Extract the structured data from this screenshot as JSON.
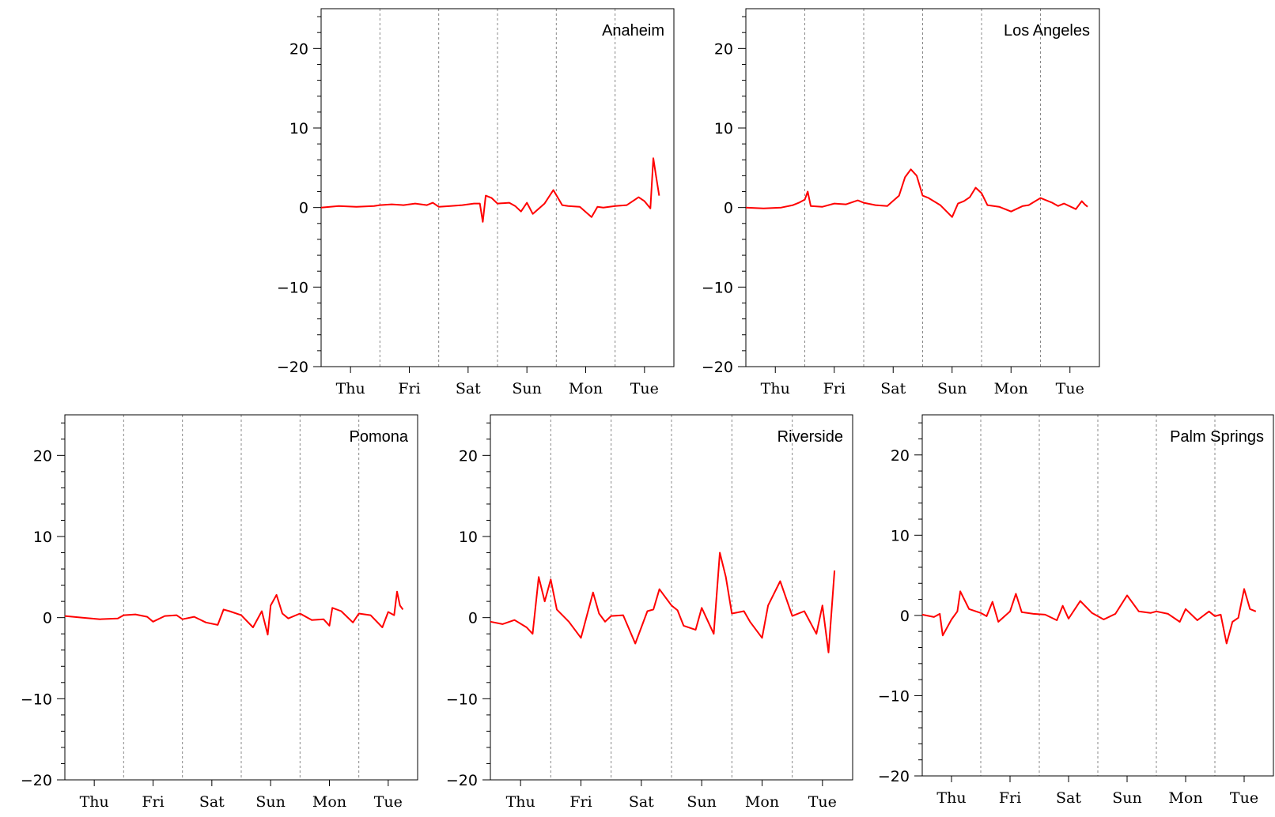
{
  "chart_data": [
    {
      "type": "line",
      "title": "Anaheim",
      "categories": [
        "Thu",
        "Fri",
        "Sat",
        "Sun",
        "Mon",
        "Tue"
      ],
      "yticks": [
        -20,
        -10,
        0,
        10,
        20
      ],
      "ylim": [
        -20,
        25
      ],
      "xlim": [
        0,
        6
      ],
      "grid": "vertical dashed at day boundaries",
      "series": [
        {
          "color": "#ff0000",
          "x": [
            0,
            0.3,
            0.6,
            0.9,
            1.0,
            1.2,
            1.4,
            1.6,
            1.8,
            1.9,
            2.0,
            2.2,
            2.4,
            2.6,
            2.7,
            2.75,
            2.8,
            2.9,
            3.0,
            3.2,
            3.3,
            3.4,
            3.5,
            3.6,
            3.8,
            3.95,
            4.1,
            4.2,
            4.4,
            4.6,
            4.7,
            4.8,
            5.0,
            5.2,
            5.4,
            5.5,
            5.6,
            5.65,
            5.7,
            5.75
          ],
          "y": [
            0,
            0.2,
            0.1,
            0.2,
            0.3,
            0.4,
            0.3,
            0.5,
            0.3,
            0.6,
            0.1,
            0.2,
            0.3,
            0.5,
            0.5,
            -1.8,
            1.5,
            1.2,
            0.5,
            0.6,
            0.2,
            -0.5,
            0.6,
            -0.8,
            0.5,
            2.2,
            0.3,
            0.2,
            0.1,
            -1.2,
            0.1,
            0,
            0.2,
            0.3,
            1.3,
            0.8,
            -0.1,
            6.2,
            3.8,
            1.5
          ]
        }
      ]
    },
    {
      "type": "line",
      "title": "Los Angeles",
      "categories": [
        "Thu",
        "Fri",
        "Sat",
        "Sun",
        "Mon",
        "Tue"
      ],
      "yticks": [
        -20,
        -10,
        0,
        10,
        20
      ],
      "ylim": [
        -20,
        25
      ],
      "xlim": [
        0,
        6
      ],
      "grid": "vertical dashed at day boundaries",
      "series": [
        {
          "color": "#ff0000",
          "x": [
            0,
            0.3,
            0.6,
            0.8,
            0.9,
            1.0,
            1.05,
            1.1,
            1.3,
            1.5,
            1.7,
            1.9,
            2.0,
            2.2,
            2.4,
            2.6,
            2.7,
            2.8,
            2.9,
            3.0,
            3.1,
            3.3,
            3.5,
            3.6,
            3.7,
            3.8,
            3.9,
            4.0,
            4.1,
            4.3,
            4.5,
            4.7,
            4.8,
            5.0,
            5.2,
            5.3,
            5.4,
            5.6,
            5.7,
            5.75,
            5.8
          ],
          "y": [
            0,
            -0.1,
            0,
            0.3,
            0.6,
            1.0,
            2.0,
            0.2,
            0.1,
            0.5,
            0.4,
            0.9,
            0.6,
            0.3,
            0.2,
            1.5,
            3.8,
            4.8,
            4.0,
            1.5,
            1.2,
            0.3,
            -1.2,
            0.5,
            0.8,
            1.3,
            2.5,
            1.8,
            0.3,
            0.1,
            -0.5,
            0.2,
            0.3,
            1.2,
            0.6,
            0.2,
            0.5,
            -0.2,
            0.8,
            0.4,
            0.1
          ]
        }
      ]
    },
    {
      "type": "line",
      "title": "Pomona",
      "categories": [
        "Thu",
        "Fri",
        "Sat",
        "Sun",
        "Mon",
        "Tue"
      ],
      "yticks": [
        -20,
        -10,
        0,
        10,
        20
      ],
      "ylim": [
        -20,
        25
      ],
      "xlim": [
        0,
        6
      ],
      "grid": "vertical dashed at day boundaries",
      "series": [
        {
          "color": "#ff0000",
          "x": [
            0,
            0.3,
            0.6,
            0.9,
            1.0,
            1.2,
            1.4,
            1.5,
            1.7,
            1.9,
            2.0,
            2.2,
            2.4,
            2.6,
            2.7,
            2.8,
            3.0,
            3.2,
            3.35,
            3.45,
            3.5,
            3.6,
            3.7,
            3.8,
            4.0,
            4.2,
            4.4,
            4.5,
            4.55,
            4.7,
            4.9,
            5.0,
            5.2,
            5.4,
            5.5,
            5.6,
            5.65,
            5.7,
            5.75
          ],
          "y": [
            0.2,
            0,
            -0.2,
            -0.1,
            0.3,
            0.4,
            0.1,
            -0.5,
            0.2,
            0.3,
            -0.2,
            0.1,
            -0.6,
            -0.9,
            1.0,
            0.8,
            0.3,
            -1.2,
            0.8,
            -2.1,
            1.5,
            2.8,
            0.5,
            -0.1,
            0.5,
            -0.3,
            -0.2,
            -1.0,
            1.2,
            0.8,
            -0.6,
            0.5,
            0.3,
            -1.2,
            0.7,
            0.3,
            3.2,
            1.5,
            1.0
          ]
        }
      ]
    },
    {
      "type": "line",
      "title": "Riverside",
      "categories": [
        "Thu",
        "Fri",
        "Sat",
        "Sun",
        "Mon",
        "Tue"
      ],
      "yticks": [
        -20,
        -10,
        0,
        10,
        20
      ],
      "ylim": [
        -20,
        25
      ],
      "xlim": [
        0,
        6
      ],
      "grid": "vertical dashed at day boundaries",
      "series": [
        {
          "color": "#ff0000",
          "x": [
            0,
            0.2,
            0.4,
            0.6,
            0.7,
            0.8,
            0.9,
            1.0,
            1.1,
            1.3,
            1.5,
            1.7,
            1.8,
            1.9,
            2.0,
            2.2,
            2.4,
            2.6,
            2.7,
            2.8,
            3.0,
            3.1,
            3.2,
            3.4,
            3.5,
            3.7,
            3.8,
            3.9,
            4.0,
            4.2,
            4.3,
            4.5,
            4.6,
            4.8,
            5.0,
            5.2,
            5.4,
            5.5,
            5.6,
            5.7
          ],
          "y": [
            -0.5,
            -0.8,
            -0.3,
            -1.2,
            -2.0,
            5.0,
            2.0,
            4.7,
            1.0,
            -0.5,
            -2.5,
            3.1,
            0.5,
            -0.5,
            0.2,
            0.3,
            -3.2,
            0.8,
            1.0,
            3.5,
            1.5,
            0.9,
            -1.0,
            -1.5,
            1.2,
            -2.0,
            8.0,
            5.0,
            0.5,
            0.8,
            -0.5,
            -2.5,
            1.5,
            4.5,
            0.2,
            0.8,
            -2.0,
            1.5,
            -4.3,
            5.8
          ]
        }
      ]
    },
    {
      "type": "line",
      "title": "Palm Springs",
      "categories": [
        "Thu",
        "Fri",
        "Sat",
        "Sun",
        "Mon",
        "Tue"
      ],
      "yticks": [
        -20,
        -10,
        0,
        10,
        20
      ],
      "ylim": [
        -20,
        25
      ],
      "xlim": [
        0,
        6
      ],
      "grid": "vertical dashed at day boundaries",
      "series": [
        {
          "color": "#ff0000",
          "x": [
            0,
            0.2,
            0.3,
            0.35,
            0.5,
            0.6,
            0.65,
            0.8,
            1.0,
            1.1,
            1.2,
            1.3,
            1.5,
            1.6,
            1.7,
            1.9,
            2.1,
            2.3,
            2.4,
            2.5,
            2.7,
            2.9,
            3.1,
            3.3,
            3.5,
            3.7,
            3.9,
            4.0,
            4.2,
            4.4,
            4.5,
            4.7,
            4.9,
            5.0,
            5.1,
            5.2,
            5.3,
            5.4,
            5.5,
            5.6,
            5.7
          ],
          "y": [
            0.1,
            -0.2,
            0.2,
            -2.5,
            -0.5,
            0.5,
            3.0,
            0.8,
            0.3,
            -0.1,
            1.7,
            -0.8,
            0.5,
            2.7,
            0.4,
            0.2,
            0.1,
            -0.6,
            1.2,
            -0.4,
            1.8,
            0.3,
            -0.5,
            0.2,
            2.5,
            0.5,
            0.3,
            0.5,
            0.2,
            -0.8,
            0.8,
            -0.6,
            0.5,
            -0.1,
            0.1,
            -3.5,
            -0.8,
            -0.3,
            3.3,
            0.8,
            0.5
          ]
        }
      ]
    }
  ]
}
